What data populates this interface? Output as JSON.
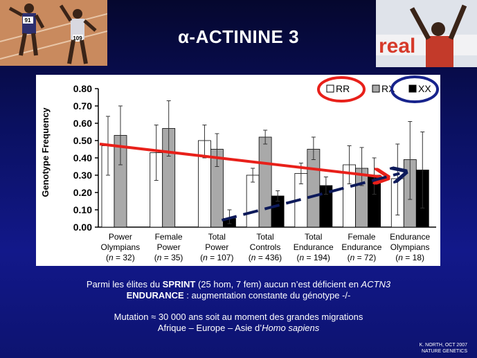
{
  "slide": {
    "title_prefix": "α",
    "title_rest": "-ACTININE 3",
    "caption": {
      "line1_pre": "Parmi les élites du ",
      "line1_bold": "SPRINT",
      "line1_mid": " (25 hom, 7 fem) aucun n’est déficient en ",
      "line1_italic": "ACTN3",
      "line2_bold": "ENDURANCE",
      "line2_rest": " : augmentation constante du génotype -/-",
      "line3": "Mutation ≈ 30 000 ans soit au moment des grandes migrations",
      "line4_pre": "Afrique – Europe – Asie  d’",
      "line4_italic": "Homo sapiens"
    },
    "credit_line1": "K. NORTH, OCT 2007",
    "credit_line2": "NATURE GENETICS",
    "photo_left_bibs": [
      "91",
      "109"
    ],
    "photo_right_text": "real"
  },
  "chart_data": {
    "type": "bar",
    "ylabel": "Genotype Frequency",
    "ylim": [
      0,
      0.8
    ],
    "yticks": [
      "0.00",
      "0.10",
      "0.20",
      "0.30",
      "0.40",
      "0.50",
      "0.60",
      "0.70",
      "0.80"
    ],
    "categories": [
      {
        "label1": "Power",
        "label2": "Olympians",
        "n": "32"
      },
      {
        "label1": "Female",
        "label2": "Power",
        "n": "35"
      },
      {
        "label1": "Total",
        "label2": "Power",
        "n": "107"
      },
      {
        "label1": "Total",
        "label2": "Controls",
        "n": "436"
      },
      {
        "label1": "Total",
        "label2": "Endurance",
        "n": "194"
      },
      {
        "label1": "Female",
        "label2": "Endurance",
        "n": "72"
      },
      {
        "label1": "Endurance",
        "label2": "Olympians",
        "n": "18"
      }
    ],
    "series": [
      {
        "name": "RR",
        "color": "#ffffff",
        "values": [
          0.47,
          0.43,
          0.5,
          0.3,
          0.31,
          0.36,
          0.28
        ],
        "err": [
          [
            0.3,
            0.64
          ],
          [
            0.27,
            0.59
          ],
          [
            0.4,
            0.59
          ],
          [
            0.26,
            0.34
          ],
          [
            0.25,
            0.37
          ],
          [
            0.25,
            0.47
          ],
          [
            0.07,
            0.48
          ]
        ]
      },
      {
        "name": "RX",
        "color": "#a9a9a9",
        "values": [
          0.53,
          0.57,
          0.45,
          0.52,
          0.45,
          0.34,
          0.39
        ],
        "err": [
          [
            0.36,
            0.7
          ],
          [
            0.41,
            0.73
          ],
          [
            0.35,
            0.54
          ],
          [
            0.48,
            0.56
          ],
          [
            0.39,
            0.52
          ],
          [
            0.24,
            0.46
          ],
          [
            0.16,
            0.61
          ]
        ]
      },
      {
        "name": "XX",
        "color": "#000000",
        "values": [
          0.0,
          0.0,
          0.05,
          0.18,
          0.24,
          0.3,
          0.33
        ],
        "err": [
          null,
          null,
          [
            0.02,
            0.1
          ],
          [
            0.15,
            0.21
          ],
          [
            0.19,
            0.29
          ],
          [
            0.19,
            0.4
          ],
          [
            0.11,
            0.55
          ]
        ]
      }
    ],
    "n_prefix": "(",
    "n_var": "n",
    "n_eq": " = ",
    "n_suffix": ")",
    "annotations": {
      "red_arrow": {
        "from": 0.48,
        "to": 0.29
      },
      "navy_arrow": {
        "from": 0.04,
        "to": 0.31
      }
    },
    "legend_position": "top-right"
  }
}
